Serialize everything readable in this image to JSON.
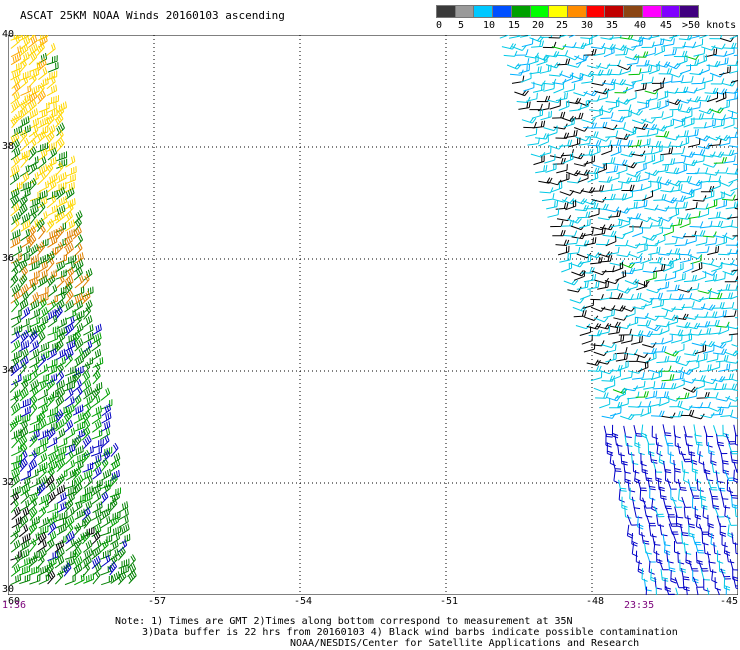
{
  "title": "ASCAT 25KM NOAA Winds 20160103 ascending",
  "legend": {
    "labels": [
      "0",
      "5",
      "10",
      "15",
      "20",
      "25",
      "30",
      "35",
      "40",
      "45",
      ">50 knots"
    ],
    "colors": [
      "#3a3a3a",
      "#9a9a9a",
      "#00c8ff",
      "#0050ff",
      "#00a000",
      "#00ff00",
      "#ffff00",
      "#ff8c00",
      "#ff0000",
      "#c00000",
      "#8b4513",
      "#ff00ff",
      "#8000ff",
      "#400080"
    ]
  },
  "axes": {
    "lon_ticks": [
      "-60",
      "-57",
      "-54",
      "-51",
      "-48",
      "-45"
    ],
    "lat_ticks": [
      "40",
      "38",
      "36",
      "34",
      "32",
      "30"
    ],
    "lon_range": [
      -60,
      -45
    ],
    "lat_range": [
      30,
      40
    ]
  },
  "times": {
    "left": "1:36",
    "right": "23:35"
  },
  "notes": {
    "line1": "Note: 1) Times are GMT 2)Times along bottom correspond to measurement at 35N",
    "line2": "3)Data buffer is 22 hrs from 20160103 4) Black wind barbs indicate possible contamination",
    "line3": "NOAA/NESDIS/Center for Satellite Applications and Research"
  },
  "swaths": [
    {
      "name": "left-swath",
      "colors": [
        "#ffd700",
        "#ffaa00",
        "#e08000",
        "#008000",
        "#00a000",
        "#0000c0",
        "#000000"
      ]
    },
    {
      "name": "right-swath",
      "colors": [
        "#00c8e6",
        "#00b0ff",
        "#0000c8",
        "#000000",
        "#00c000"
      ]
    }
  ]
}
